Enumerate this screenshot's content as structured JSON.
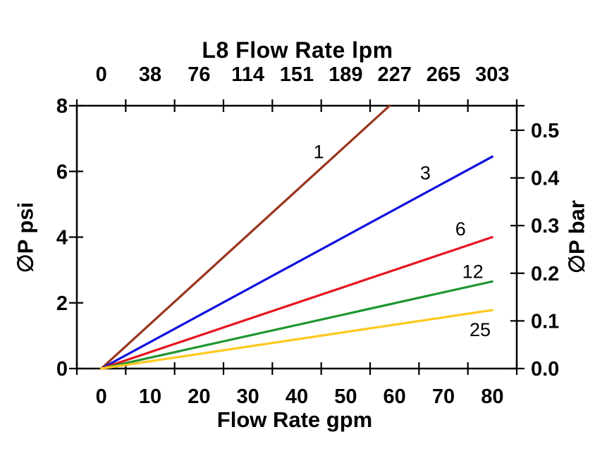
{
  "chart_data": {
    "type": "line",
    "title": "L8 Flow Rate lpm",
    "grid": false,
    "legend": "inline-labels",
    "axes": {
      "top_x": {
        "tick_labels": [
          "0",
          "38",
          "76",
          "114",
          "151",
          "189",
          "227",
          "265",
          "303"
        ]
      },
      "bottom_x": {
        "label": "Flow Rate gpm",
        "tick_values": [
          0,
          10,
          20,
          30,
          40,
          50,
          60,
          70,
          80
        ],
        "range_gpm": [
          0,
          80
        ]
      },
      "left_y": {
        "label": "∅P psi",
        "tick_values": [
          0,
          2,
          4,
          6,
          8
        ],
        "range_psi": [
          0,
          8
        ]
      },
      "right_y": {
        "label": "∅P bar",
        "tick_labels": [
          "0.0",
          "0.1",
          "0.2",
          "0.3",
          "0.4",
          "0.5"
        ],
        "tick_values_bar": [
          0.0,
          0.1,
          0.2,
          0.3,
          0.4,
          0.5
        ],
        "psi_per_bar": 14.5038
      }
    },
    "series": [
      {
        "name": "1",
        "color": "#9A331C",
        "points_gpm_psi": [
          [
            0,
            0
          ],
          [
            59,
            8.0
          ]
        ],
        "label_at_gpm_psi": [
          44.5,
          6.6
        ]
      },
      {
        "name": "3",
        "color": "#1010E0",
        "points_gpm_psi": [
          [
            0,
            0
          ],
          [
            80,
            6.45
          ]
        ],
        "label_at_gpm_psi": [
          66.3,
          5.95
        ]
      },
      {
        "name": "6",
        "color": "#E6141E",
        "points_gpm_psi": [
          [
            0,
            0
          ],
          [
            80,
            4.0
          ]
        ],
        "label_at_gpm_psi": [
          73.5,
          4.25
        ]
      },
      {
        "name": "12",
        "color": "#1E9632",
        "points_gpm_psi": [
          [
            0,
            0
          ],
          [
            80,
            2.65
          ]
        ],
        "label_at_gpm_psi": [
          76.0,
          2.95
        ]
      },
      {
        "name": "25",
        "color": "#FFC81E",
        "points_gpm_psi": [
          [
            0,
            0
          ],
          [
            80,
            1.78
          ]
        ],
        "label_at_gpm_psi": [
          77.5,
          1.18
        ]
      }
    ],
    "colors": {
      "axis": "#000000",
      "background": "#FFFFFF",
      "text": "#000000"
    }
  }
}
